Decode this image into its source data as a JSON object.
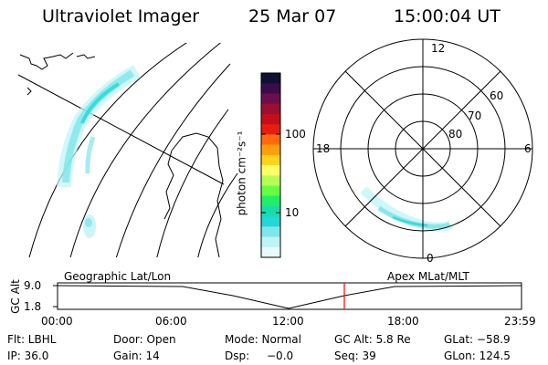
{
  "header": {
    "instrument": "Ultraviolet Imager",
    "date": "25 Mar 07",
    "time": "15:00:04 UT"
  },
  "colorbar": {
    "unit_label": "photon cm⁻²s⁻¹",
    "ticks": [
      "100",
      "10"
    ],
    "colors": [
      "#101030",
      "#3b0b4a",
      "#6b0f4b",
      "#9a0f32",
      "#c40f1a",
      "#e61e10",
      "#ff6a10",
      "#ff9d0a",
      "#ffd21e",
      "#ffff66",
      "#b8ff55",
      "#66ff44",
      "#22ee66",
      "#18ddaa",
      "#22d8d8",
      "#7fe6ea",
      "#bff3f5",
      "#e8fbfc"
    ]
  },
  "polar_plot": {
    "mlt_labels": [
      "12",
      "6",
      "0",
      "18"
    ],
    "lat_labels": [
      "60",
      "70",
      "80"
    ]
  },
  "timeline": {
    "left_label": "Geographic Lat/Lon",
    "right_label": "Apex MLat/MLT",
    "axis_title": "GC Alt",
    "y_ticks": [
      "9.0",
      "1.8"
    ],
    "x_ticks": [
      "00:00",
      "06:00",
      "12:00",
      "18:00",
      "23:59"
    ],
    "cursor_color": "#ff0000"
  },
  "info": {
    "row1": {
      "filter": "Flt: LBHL",
      "door": "Door: Open",
      "mode": "Mode: Normal",
      "gc_alt": "GC Alt: 5.8 Re",
      "glat": "GLat: −58.9"
    },
    "row2": {
      "ip": "IP: 36.0",
      "gain": "Gain: 14",
      "dsp_label": "Dsp:",
      "dsp_value": "−0.0",
      "seq": "Seq: 39",
      "glon": "GLon: 124.5"
    }
  }
}
